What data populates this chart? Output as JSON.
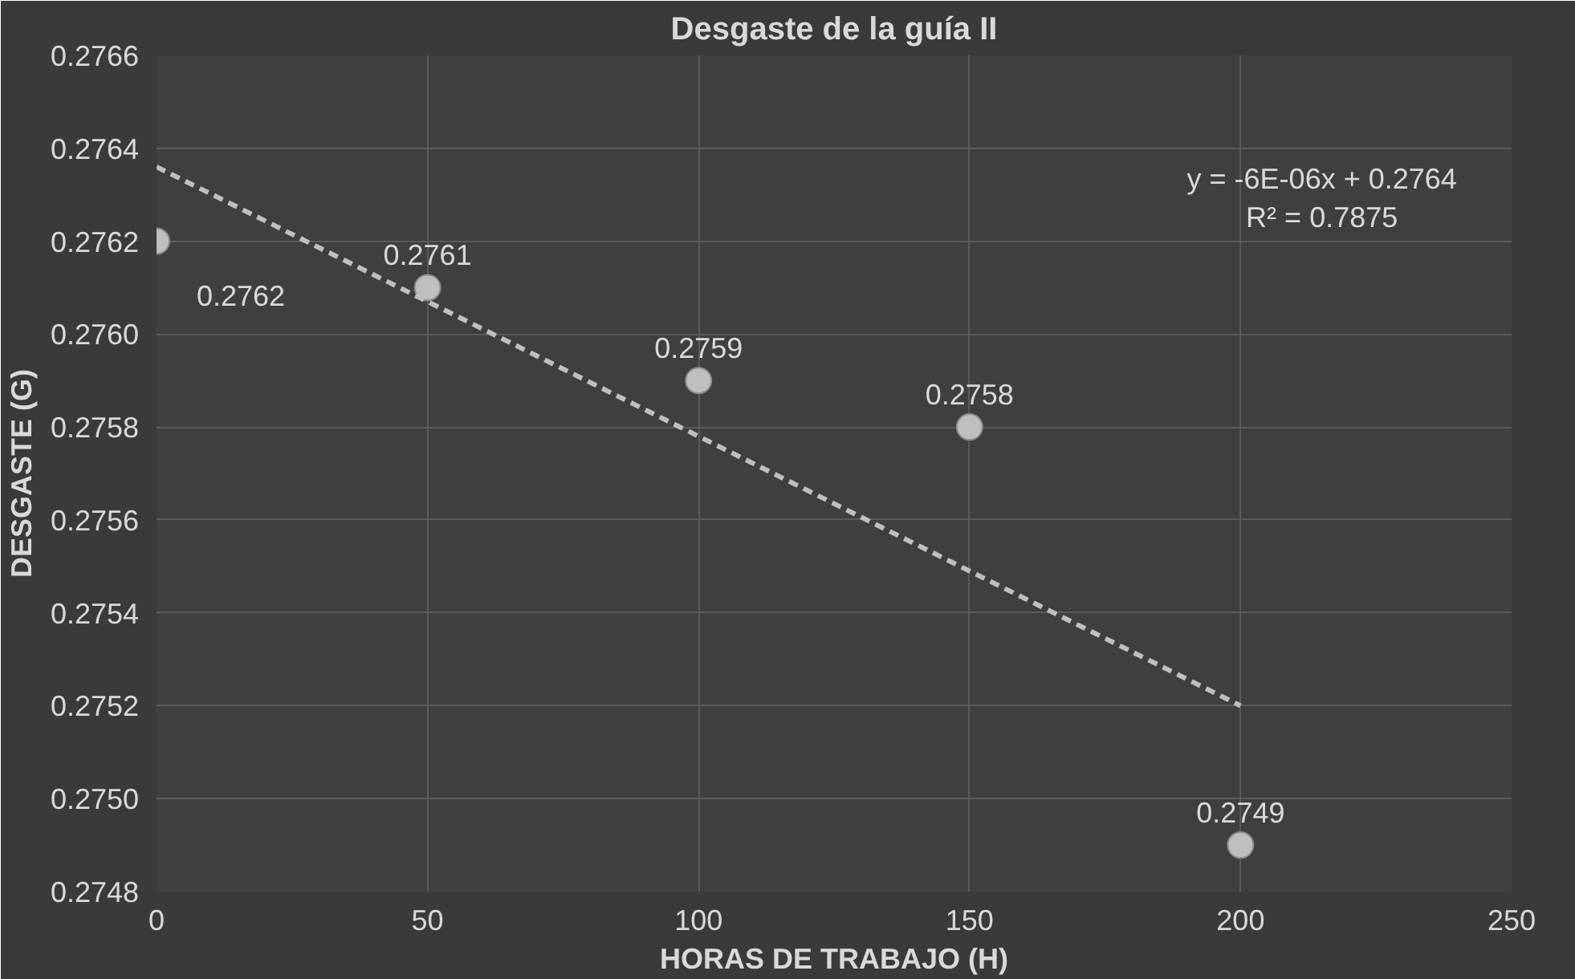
{
  "chart_data": {
    "type": "scatter",
    "title": "Desgaste de la guía II",
    "xlabel": "HORAS DE TRABAJO (H)",
    "ylabel": "DESGASTE (G)",
    "x": [
      0,
      50,
      100,
      150,
      200
    ],
    "series": [
      {
        "color": "#bfbfbf",
        "values": [
          0.2762,
          0.2761,
          0.2759,
          0.2758,
          0.2749
        ],
        "value_labels": [
          "0.2762",
          "0.2761",
          "0.2759",
          "0.2758",
          "0.2749"
        ],
        "marker": "circle"
      },
      {
        "type": "line",
        "color": "#bfbfbf",
        "x": [
          0,
          200
        ],
        "values": [
          0.27636,
          0.2752
        ],
        "line_style": "dashed"
      }
    ],
    "annotations": [
      "y = -6E-06x + 0.2764",
      "R² = 0.7875"
    ],
    "xlim": [
      0,
      250
    ],
    "xticks": [
      0,
      50,
      100,
      150,
      200,
      250
    ],
    "ylim": [
      0.2748,
      0.2766
    ],
    "yticks": [
      0.2748,
      {
        "value": 0.275,
        "label": "0.2750"
      },
      0.2752,
      0.2754,
      0.2756,
      0.2758,
      {
        "value": 0.276,
        "label": "0.2760"
      },
      0.2762,
      0.2764,
      0.2766
    ],
    "grid": true
  }
}
